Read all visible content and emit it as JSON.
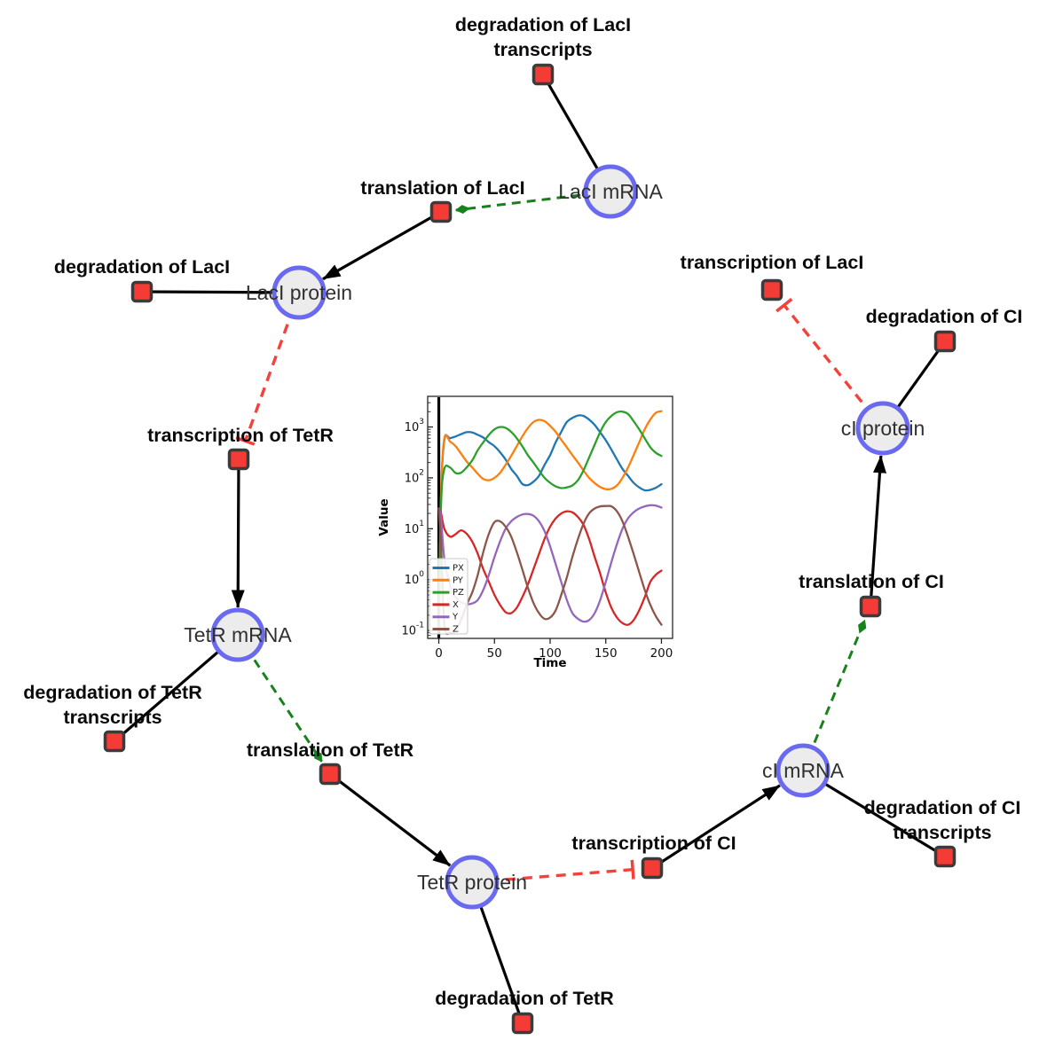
{
  "diagram": {
    "species_nodes": [
      {
        "id": "laci_mrna",
        "label": "LacI mRNA"
      },
      {
        "id": "laci_protein",
        "label": "LacI protein"
      },
      {
        "id": "tetr_mrna",
        "label": "TetR mRNA"
      },
      {
        "id": "tetr_protein",
        "label": "TetR protein"
      },
      {
        "id": "ci_mrna",
        "label": "cI mRNA"
      },
      {
        "id": "ci_protein",
        "label": "cI protein"
      }
    ],
    "reaction_nodes": [
      {
        "id": "deg_laci_tx",
        "label": "degradation of LacI transcripts",
        "label_lines": [
          "degradation of LacI",
          "transcripts"
        ]
      },
      {
        "id": "transl_laci",
        "label": "translation of LacI",
        "label_lines": [
          "translation of LacI"
        ]
      },
      {
        "id": "deg_laci",
        "label": "degradation of LacI",
        "label_lines": [
          "degradation of LacI"
        ]
      },
      {
        "id": "tx_tetr",
        "label": "transcription of TetR",
        "label_lines": [
          "transcription of TetR"
        ]
      },
      {
        "id": "deg_tetr_tx",
        "label": "degradation of TetR transcripts",
        "label_lines": [
          "degradation of TetR",
          "transcripts"
        ]
      },
      {
        "id": "transl_tetr",
        "label": "translation of TetR",
        "label_lines": [
          "translation of TetR"
        ]
      },
      {
        "id": "deg_tetr",
        "label": "degradation of TetR",
        "label_lines": [
          "degradation of TetR"
        ]
      },
      {
        "id": "tx_ci",
        "label": "transcription of CI",
        "label_lines": [
          "transcription of CI"
        ]
      },
      {
        "id": "deg_ci_tx",
        "label": "degradation of CI transcripts",
        "label_lines": [
          "degradation of CI",
          "transcripts"
        ]
      },
      {
        "id": "transl_ci",
        "label": "translation of CI",
        "label_lines": [
          "translation of CI"
        ]
      },
      {
        "id": "deg_ci",
        "label": "degradation of CI",
        "label_lines": [
          "degradation of CI"
        ]
      },
      {
        "id": "tx_laci",
        "label": "transcription of LacI",
        "label_lines": [
          "transcription of LacI"
        ]
      }
    ],
    "edges": [
      {
        "from": "laci_mrna",
        "to": "deg_laci_tx",
        "type": "reactant"
      },
      {
        "from": "laci_mrna",
        "to": "transl_laci",
        "type": "modifier"
      },
      {
        "from": "transl_laci",
        "to": "laci_protein",
        "type": "product"
      },
      {
        "from": "laci_protein",
        "to": "deg_laci",
        "type": "reactant"
      },
      {
        "from": "laci_protein",
        "to": "tx_tetr",
        "type": "inhibition"
      },
      {
        "from": "tx_tetr",
        "to": "tetr_mrna",
        "type": "product"
      },
      {
        "from": "tetr_mrna",
        "to": "deg_tetr_tx",
        "type": "reactant"
      },
      {
        "from": "tetr_mrna",
        "to": "transl_tetr",
        "type": "modifier"
      },
      {
        "from": "transl_tetr",
        "to": "tetr_protein",
        "type": "product"
      },
      {
        "from": "tetr_protein",
        "to": "deg_tetr",
        "type": "reactant"
      },
      {
        "from": "tetr_protein",
        "to": "tx_ci",
        "type": "inhibition"
      },
      {
        "from": "tx_ci",
        "to": "ci_mrna",
        "type": "product"
      },
      {
        "from": "ci_mrna",
        "to": "deg_ci_tx",
        "type": "reactant"
      },
      {
        "from": "ci_mrna",
        "to": "transl_ci",
        "type": "modifier"
      },
      {
        "from": "transl_ci",
        "to": "ci_protein",
        "type": "product"
      },
      {
        "from": "ci_protein",
        "to": "deg_ci",
        "type": "reactant"
      },
      {
        "from": "ci_protein",
        "to": "tx_laci",
        "type": "inhibition"
      }
    ],
    "colors": {
      "species_fill": "#ececec",
      "species_stroke": "#6a6af0",
      "reaction_fill": "#f43b35",
      "reaction_stroke": "#3b3b3b",
      "product_edge": "#000000",
      "reactant_edge": "#000000",
      "modifier_edge": "#17821b",
      "inhibition_edge": "#f4413b",
      "species_label": "#303030",
      "reaction_label": "#0a0a0a"
    }
  },
  "chart_data": {
    "type": "line",
    "title": "",
    "xlabel": "Time",
    "ylabel": "Value",
    "y_scale": "log",
    "x_lim": [
      -10,
      210
    ],
    "y_lim": [
      0.07,
      4000
    ],
    "x_ticks": [
      0,
      50,
      100,
      150,
      200
    ],
    "y_ticks": [
      "10^3",
      "10^2",
      "10^1",
      "10^0",
      "10^-1"
    ],
    "grid": false,
    "legend_position": "lower left",
    "vline_x": 0,
    "x": [
      0,
      2,
      5,
      10,
      15,
      20,
      25,
      30,
      35,
      40,
      45,
      50,
      55,
      60,
      65,
      70,
      75,
      80,
      85,
      90,
      95,
      100,
      105,
      110,
      115,
      120,
      125,
      130,
      135,
      140,
      145,
      150,
      155,
      160,
      165,
      170,
      175,
      180,
      185,
      190,
      195,
      200
    ],
    "series": [
      {
        "name": "PX",
        "color": "#1f77b4",
        "values": [
          0.1,
          45,
          560,
          600,
          650,
          720,
          790,
          780,
          700,
          620,
          500,
          420,
          320,
          230,
          150,
          110,
          76,
          72,
          84,
          110,
          180,
          280,
          500,
          800,
          1250,
          1500,
          1680,
          1650,
          1400,
          1100,
          780,
          550,
          360,
          230,
          150,
          110,
          80,
          65,
          57,
          58,
          64,
          75
        ]
      },
      {
        "name": "PY",
        "color": "#ff7f0e",
        "values": [
          0.1,
          50,
          600,
          520,
          420,
          300,
          210,
          160,
          120,
          95,
          90,
          100,
          125,
          180,
          270,
          420,
          650,
          950,
          1250,
          1380,
          1300,
          1050,
          800,
          560,
          400,
          280,
          200,
          140,
          100,
          79,
          66,
          60,
          61,
          71,
          100,
          160,
          280,
          500,
          900,
          1400,
          1900,
          2050
        ]
      },
      {
        "name": "PZ",
        "color": "#2ca02c",
        "values": [
          0.1,
          30,
          150,
          160,
          125,
          126,
          160,
          220,
          350,
          500,
          700,
          900,
          1000,
          960,
          800,
          600,
          420,
          280,
          200,
          140,
          100,
          80,
          68,
          63,
          65,
          71,
          90,
          140,
          250,
          450,
          800,
          1250,
          1650,
          1950,
          2000,
          1800,
          1300,
          900,
          600,
          400,
          310,
          270
        ]
      },
      {
        "name": "X",
        "color": "#d62728",
        "values": [
          25,
          20,
          10,
          7,
          7.8,
          9.3,
          8,
          5.6,
          3.2,
          1.6,
          0.9,
          0.5,
          0.32,
          0.23,
          0.22,
          0.28,
          0.45,
          0.8,
          1.6,
          3.2,
          6.3,
          11,
          16,
          20,
          22,
          21,
          17,
          12,
          6.3,
          2.8,
          1.3,
          0.56,
          0.28,
          0.18,
          0.14,
          0.13,
          0.16,
          0.25,
          0.45,
          0.9,
          1.25,
          1.5
        ]
      },
      {
        "name": "Y",
        "color": "#9467bd",
        "values": [
          25,
          16,
          2.5,
          0.8,
          0.45,
          0.36,
          0.33,
          0.34,
          0.4,
          0.63,
          1.25,
          2.8,
          5.6,
          10,
          14,
          17,
          19,
          19.5,
          18,
          14,
          9,
          4.5,
          2,
          0.9,
          0.4,
          0.22,
          0.17,
          0.15,
          0.16,
          0.22,
          0.4,
          0.9,
          2.2,
          5,
          10,
          16,
          21,
          25,
          27.5,
          29,
          28.5,
          26
        ]
      },
      {
        "name": "Z",
        "color": "#8c564b",
        "values": [
          25,
          5,
          0.13,
          0.09,
          0.1,
          0.16,
          0.32,
          0.56,
          1.25,
          3.5,
          8,
          13.5,
          14,
          11,
          7,
          3.5,
          1.6,
          0.7,
          0.35,
          0.22,
          0.17,
          0.18,
          0.25,
          0.5,
          1.1,
          2.8,
          6.3,
          12.5,
          20,
          25,
          27.5,
          28,
          27.5,
          22,
          14,
          7,
          3.2,
          1.4,
          0.63,
          0.32,
          0.19,
          0.13
        ]
      }
    ]
  }
}
